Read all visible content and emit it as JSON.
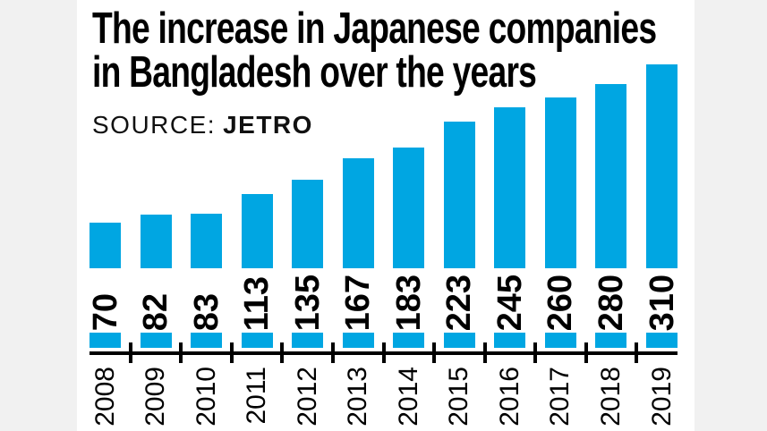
{
  "header": {
    "title_line1": "The increase in Japanese companies",
    "title_line2": "in Bangladesh over the years",
    "source_label": "SOURCE:",
    "source_value": "JETRO"
  },
  "colors": {
    "bar": "#00A6E2",
    "axis": "#000000",
    "text": "#000000",
    "card_background": "#ffffff",
    "side_background": "#f1f1f1"
  },
  "chart_data": {
    "type": "bar",
    "title": "The increase in Japanese companies in Bangladesh over the years",
    "source": "JETRO",
    "categories": [
      "2008",
      "2009",
      "2010",
      "2011",
      "2012",
      "2013",
      "2014",
      "2015",
      "2016",
      "2017",
      "2018",
      "2019"
    ],
    "values": [
      70,
      82,
      83,
      113,
      135,
      167,
      183,
      223,
      245,
      260,
      280,
      310
    ],
    "xlabel": "",
    "ylabel": "",
    "ylim": [
      0,
      310
    ],
    "orientation": "vertical",
    "grid": false,
    "legend": false,
    "value_labels": "rotated-90-at-bar-base",
    "category_labels": "rotated-90-below-axis",
    "bar_color": "#00A6E2"
  }
}
